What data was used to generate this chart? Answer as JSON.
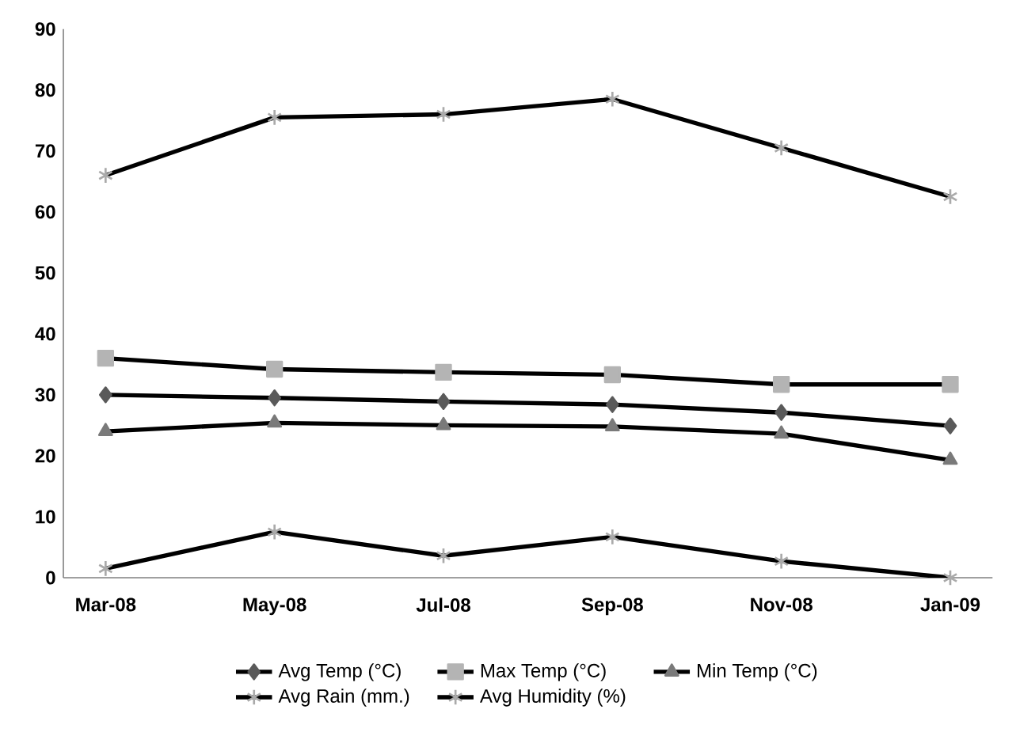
{
  "chart_data": {
    "type": "line",
    "categories": [
      "Mar-08",
      "May-08",
      "Jul-08",
      "Sep-08",
      "Nov-08",
      "Jan-09"
    ],
    "series": [
      {
        "name": "Avg Temp  (°C)",
        "color": "#5a5a5a",
        "marker": "diamond",
        "values": [
          30,
          29.5,
          28.9,
          28.4,
          27.1,
          24.9
        ]
      },
      {
        "name": "Max Temp (°C)",
        "color": "#b4b4b4",
        "marker": "square",
        "values": [
          36,
          34.2,
          33.7,
          33.3,
          31.7,
          31.7
        ]
      },
      {
        "name": "Min Temp (°C)",
        "color": "#7a7a7a",
        "marker": "triangle",
        "values": [
          24,
          25.4,
          25,
          24.8,
          23.6,
          19.3
        ]
      },
      {
        "name": "Avg Rain (mm.)",
        "color": "#aaaaaa",
        "marker": "cross",
        "values": [
          1.5,
          7.5,
          3.6,
          6.7,
          2.7,
          0
        ]
      },
      {
        "name": "Avg Humidity (%)",
        "color": "#aaaaaa",
        "marker": "cross",
        "values": [
          66,
          75.5,
          76,
          78.5,
          70.5,
          62.5
        ]
      }
    ],
    "ylim": [
      0,
      90
    ],
    "yticks": [
      0,
      10,
      20,
      30,
      40,
      50,
      60,
      70,
      80,
      90
    ],
    "grid": false,
    "legend": "bottom"
  }
}
